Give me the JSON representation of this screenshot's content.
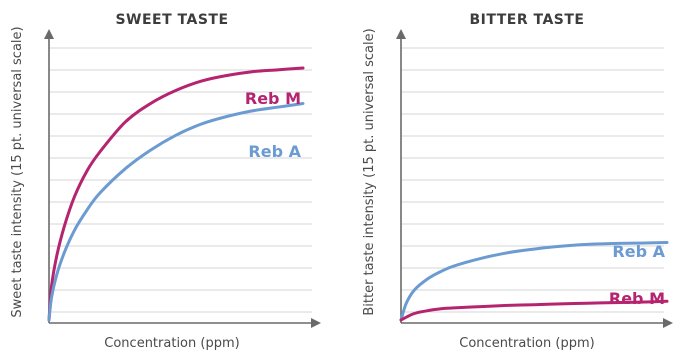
{
  "colors": {
    "reb_m": "#b5246f",
    "reb_a": "#6b9bd1",
    "grid": "#d6d6d6",
    "axis": "#6a6a6a",
    "text": "#3d3d3d"
  },
  "chart_data": [
    {
      "type": "line",
      "title": "SWEET TASTE",
      "xlabel": "Concentration (ppm)",
      "ylabel": "Sweet taste intensity (15 pt. universal scale)",
      "xlim": [
        0,
        100
      ],
      "ylim": [
        0,
        15
      ],
      "grid": true,
      "x": [
        0,
        1,
        3,
        6,
        10,
        15,
        20,
        30,
        40,
        50,
        60,
        70,
        80,
        90,
        100
      ],
      "series": [
        {
          "name": "Reb M",
          "color": "#b5246f",
          "values": [
            0,
            1.8,
            3.4,
            5.0,
            6.6,
            8.0,
            9.0,
            10.6,
            11.6,
            12.3,
            12.8,
            13.1,
            13.3,
            13.4,
            13.5
          ]
        },
        {
          "name": "Reb A",
          "color": "#6b9bd1",
          "values": [
            0,
            1.2,
            2.4,
            3.6,
            4.8,
            5.9,
            6.8,
            8.1,
            9.1,
            9.9,
            10.5,
            10.9,
            11.2,
            11.4,
            11.6
          ]
        }
      ]
    },
    {
      "type": "line",
      "title": "BITTER TASTE",
      "xlabel": "Concentration (ppm)",
      "ylabel": "Bitter taste intensity (15 pt. universal scale)",
      "xlim": [
        0,
        100
      ],
      "ylim": [
        0,
        15
      ],
      "grid": true,
      "x": [
        0,
        2,
        5,
        10,
        15,
        20,
        30,
        40,
        50,
        60,
        70,
        80,
        90,
        100
      ],
      "series": [
        {
          "name": "Reb A",
          "color": "#6b9bd1",
          "values": [
            0,
            0.9,
            1.6,
            2.2,
            2.6,
            2.9,
            3.3,
            3.6,
            3.8,
            3.95,
            4.05,
            4.1,
            4.12,
            4.15
          ]
        },
        {
          "name": "Reb M",
          "color": "#b5246f",
          "values": [
            0,
            0.15,
            0.35,
            0.5,
            0.6,
            0.65,
            0.72,
            0.78,
            0.82,
            0.86,
            0.9,
            0.93,
            0.96,
            1.0
          ]
        }
      ]
    }
  ]
}
